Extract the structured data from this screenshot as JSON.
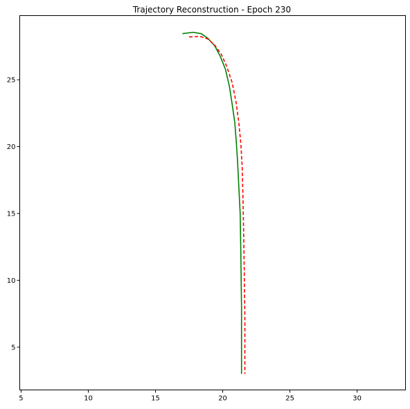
{
  "chart_data": {
    "type": "line",
    "title": "Trajectory Reconstruction - Epoch 230",
    "xlabel": "",
    "ylabel": "",
    "xlim": [
      4.9,
      33.6
    ],
    "ylim": [
      1.8,
      29.8
    ],
    "xticks": [
      5,
      10,
      15,
      20,
      25,
      30
    ],
    "yticks": [
      5,
      10,
      15,
      20,
      25
    ],
    "grid": false,
    "legend": "none",
    "series": [
      {
        "color": "#008000",
        "style": "solid",
        "x": [
          17.0,
          17.8,
          18.4,
          18.9,
          19.4,
          19.8,
          20.2,
          20.5,
          20.7,
          20.9,
          21.0,
          21.1,
          21.2,
          21.3,
          21.35,
          21.4,
          21.4
        ],
        "y": [
          28.45,
          28.55,
          28.45,
          28.1,
          27.55,
          26.8,
          25.8,
          24.5,
          23.2,
          21.8,
          20.5,
          19.0,
          17.0,
          15.0,
          12.0,
          8.0,
          3.0
        ]
      },
      {
        "color": "#ff0000",
        "style": "dashed",
        "x": [
          17.5,
          18.3,
          18.9,
          19.4,
          19.9,
          20.3,
          20.7,
          21.0,
          21.2,
          21.35,
          21.45,
          21.5,
          21.55,
          21.6,
          21.65,
          21.65
        ],
        "y": [
          28.2,
          28.25,
          28.05,
          27.6,
          26.9,
          26.0,
          24.8,
          23.3,
          21.8,
          20.2,
          18.5,
          16.5,
          14.0,
          11.0,
          7.0,
          3.0
        ]
      }
    ]
  }
}
